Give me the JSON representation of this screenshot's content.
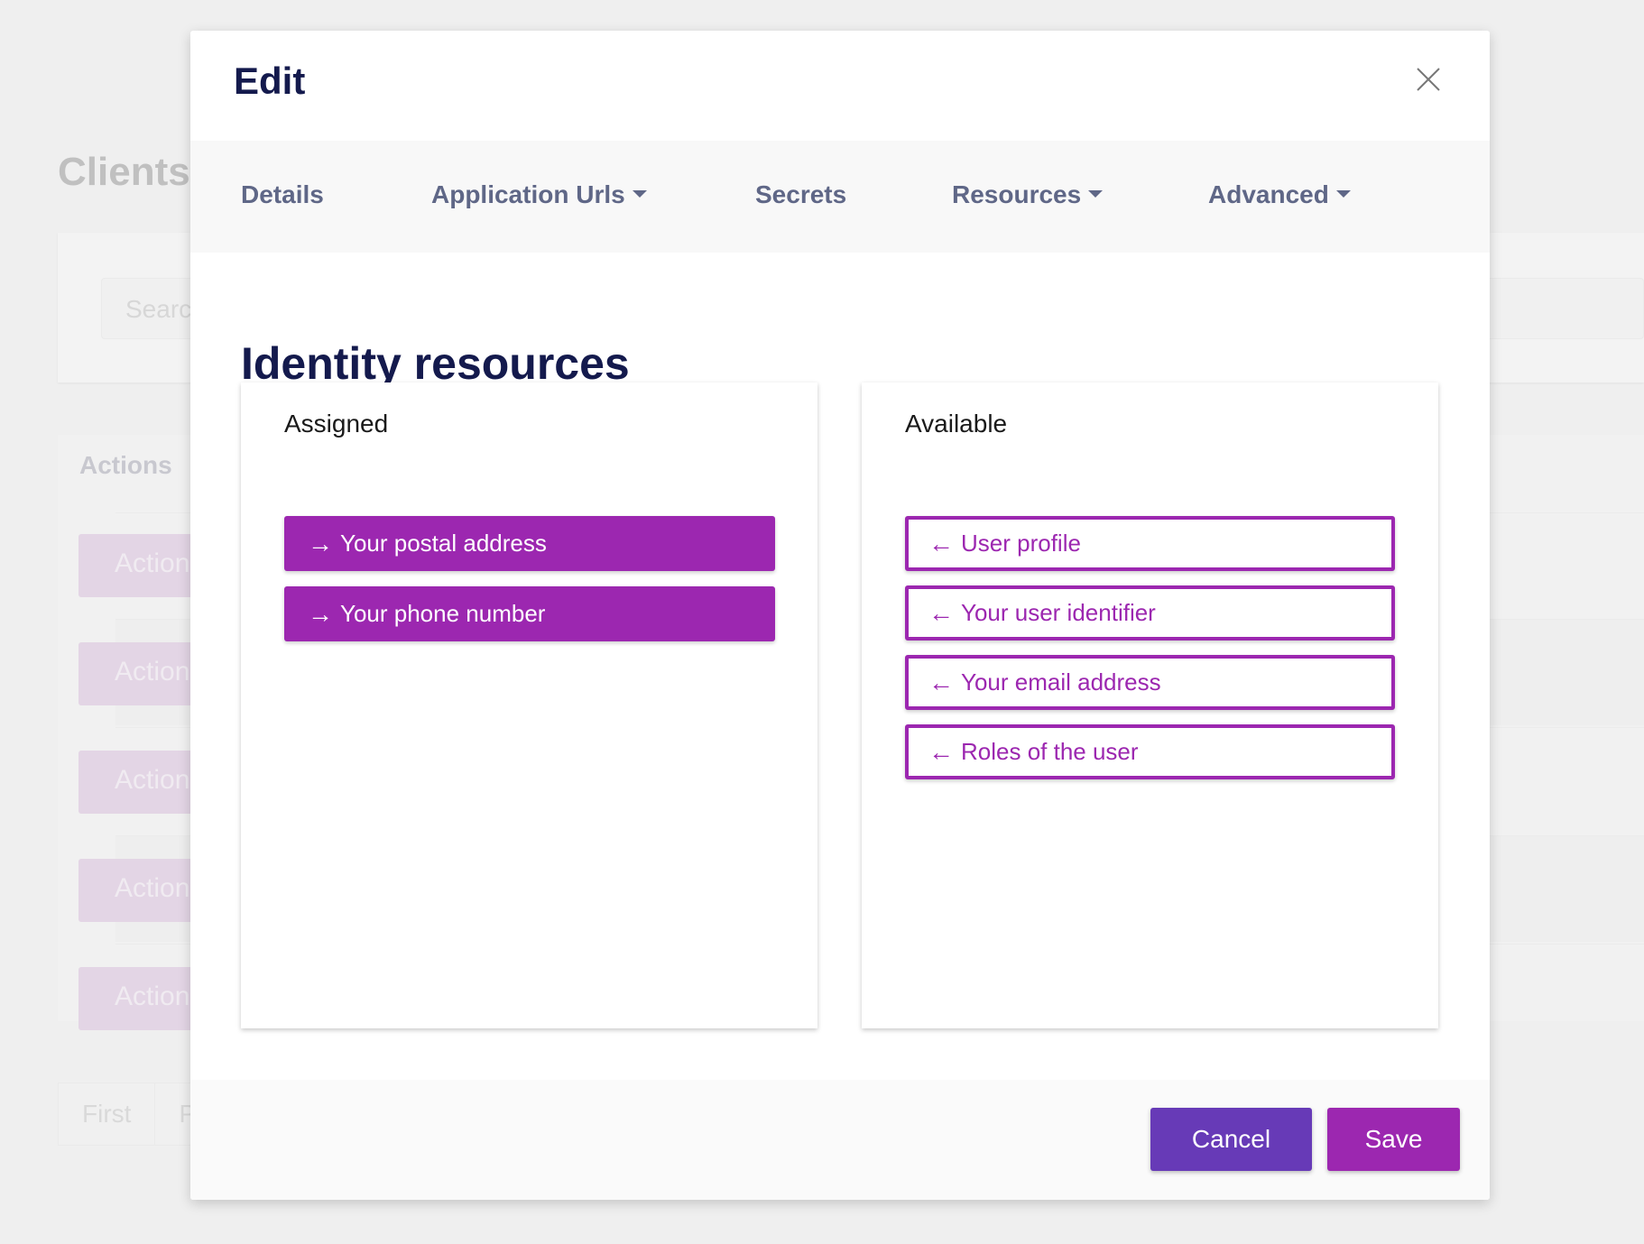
{
  "background": {
    "page_title": "Clients",
    "search_placeholder": "Search",
    "table_header": "Actions",
    "row_action_label": "Actions",
    "pagination": [
      "First",
      "Previous"
    ]
  },
  "modal": {
    "title": "Edit",
    "close_icon": "close-x-icon",
    "tabs": [
      {
        "label": "Details",
        "dropdown": false
      },
      {
        "label": "Application Urls",
        "dropdown": true
      },
      {
        "label": "Secrets",
        "dropdown": false
      },
      {
        "label": "Resources",
        "dropdown": true
      },
      {
        "label": "Advanced",
        "dropdown": true
      }
    ],
    "section_title": "Identity resources",
    "assigned": {
      "label": "Assigned",
      "items": [
        "Your postal address",
        "Your phone number"
      ]
    },
    "available": {
      "label": "Available",
      "items": [
        "User profile",
        "Your user identifier",
        "Your email address",
        "Roles of the user"
      ]
    },
    "footer": {
      "cancel": "Cancel",
      "save": "Save"
    },
    "colors": {
      "primary": "#9c27b0",
      "secondary": "#673ab7",
      "heading": "#141a4d"
    }
  }
}
